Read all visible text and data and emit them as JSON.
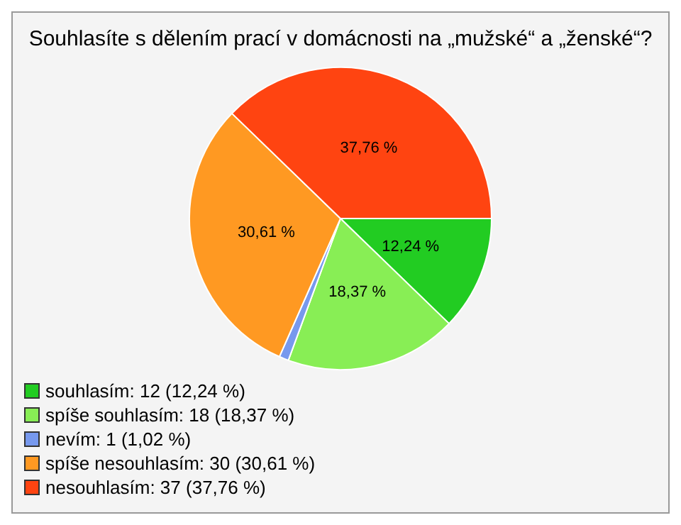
{
  "chart_data": {
    "type": "pie",
    "title": "Souhlasíte s dělením prací v domácnosti na „mužské“ a „ženské“?",
    "categories": [
      "souhlasím: 12 (12,24 %)",
      "spíše souhlasím: 18 (18,37 %)",
      "nevím: 1 (1,02 %)",
      "spíše nesouhlasím: 30 (30,61 %)",
      "nesouhlasím: 37 (37,76 %)"
    ],
    "values": [
      12.24,
      18.37,
      1.02,
      30.61,
      37.76
    ],
    "value_labels": [
      "12,24 %",
      "18,37 %",
      null,
      "30,61 %",
      "37,76 %"
    ],
    "colors": [
      "#22cc22",
      "#88ee55",
      "#7799ee",
      "#ff9922",
      "#ff4411"
    ],
    "legend": "bottom left"
  }
}
